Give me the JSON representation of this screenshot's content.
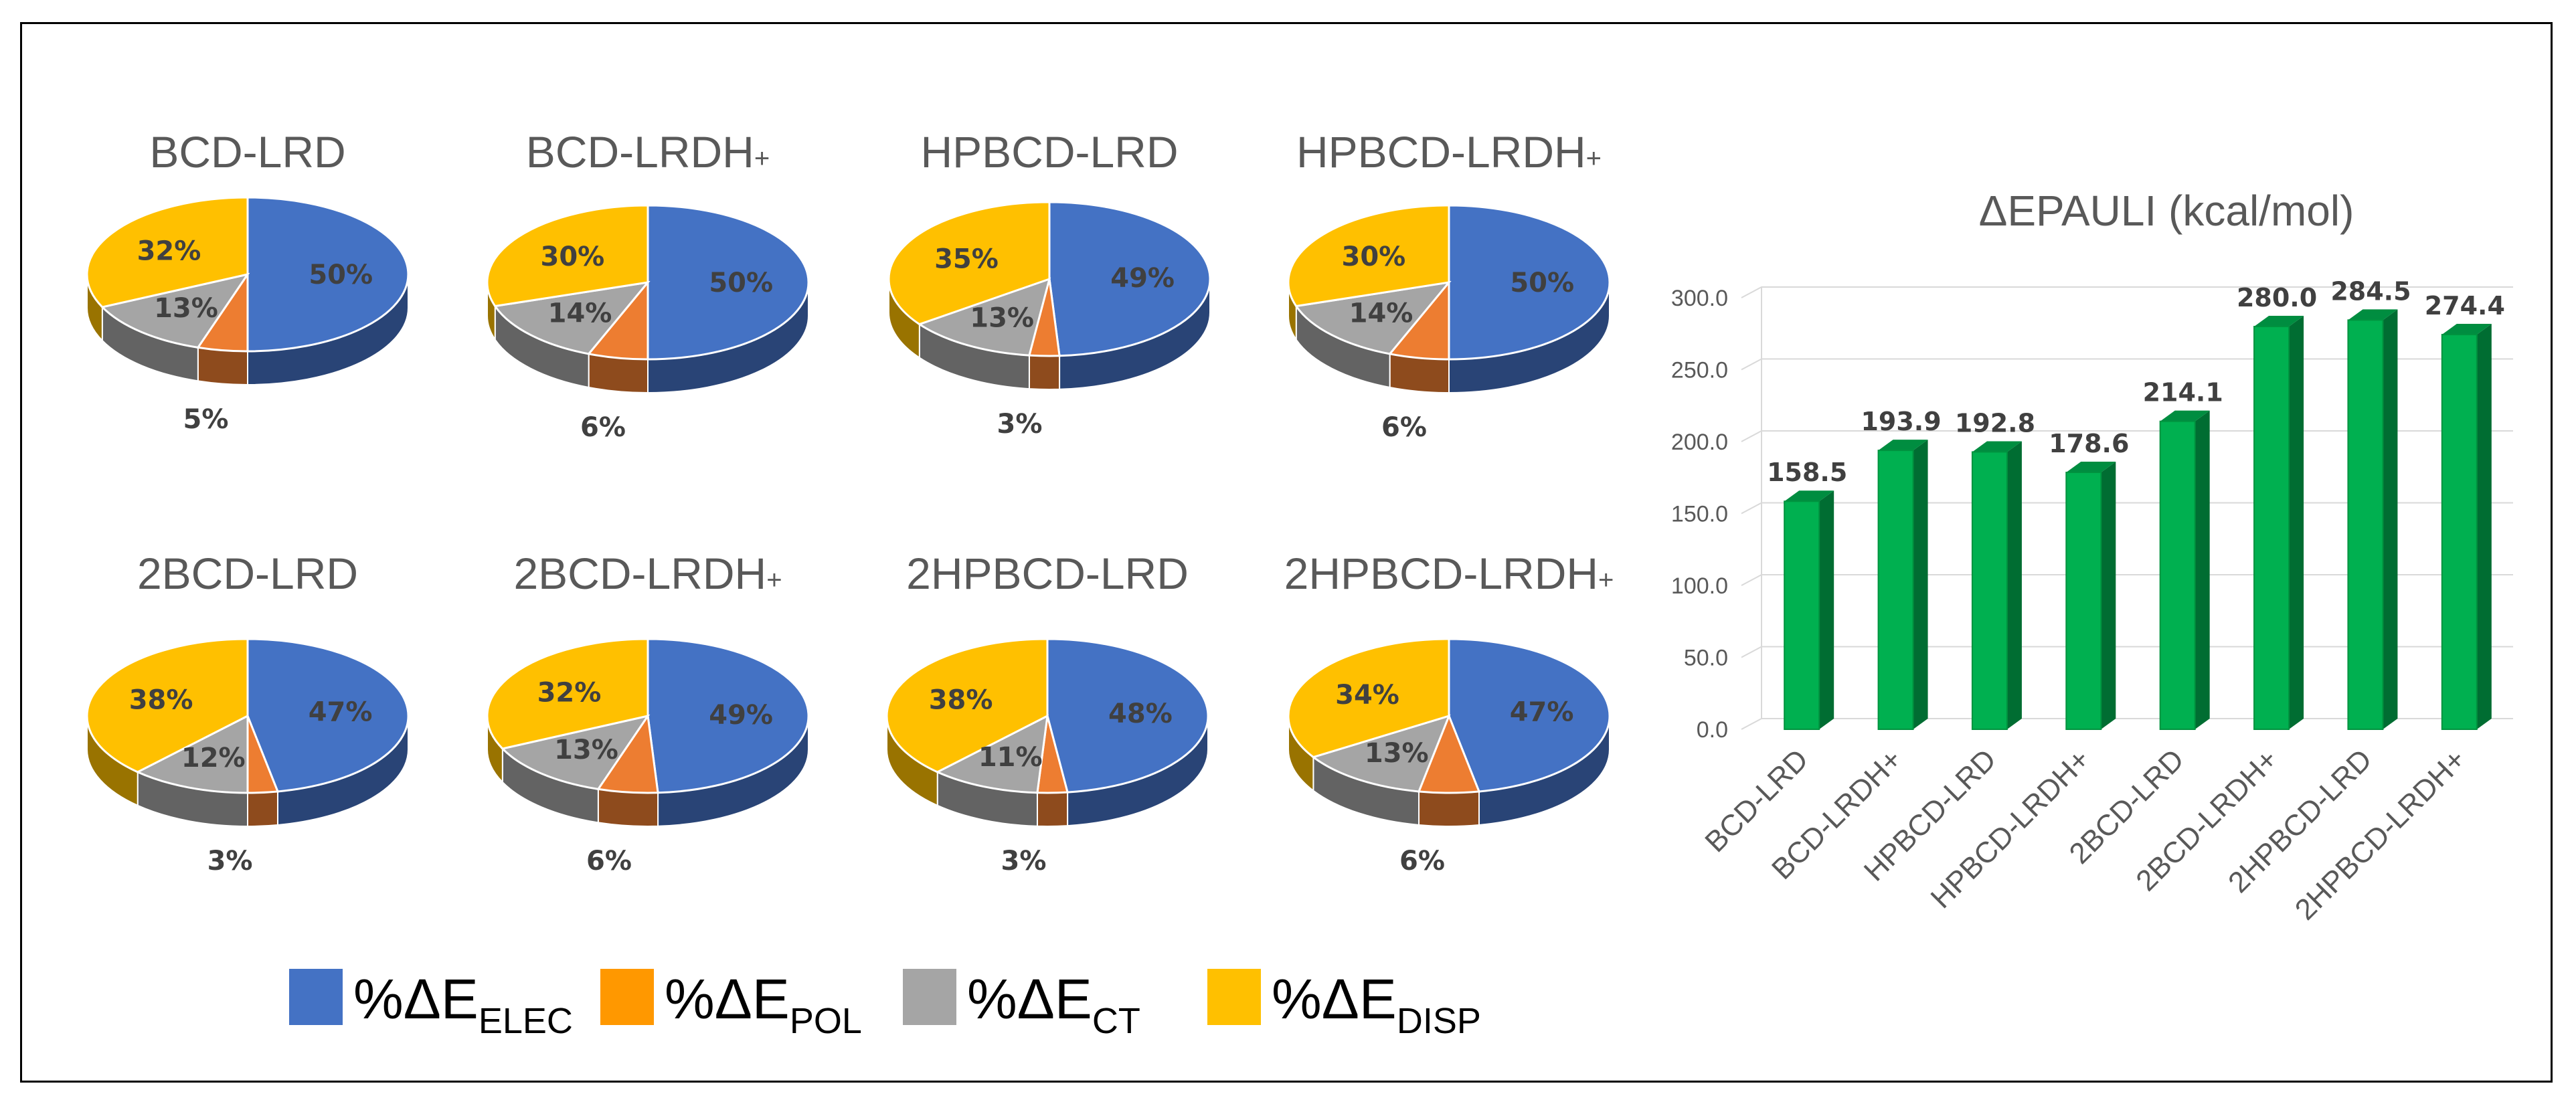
{
  "colors": {
    "elec": "#4472c4",
    "pol": "#ed7d31",
    "ct": "#a5a5a5",
    "disp": "#ffc000",
    "bar": "#00b050",
    "grid": "#d9d9d9"
  },
  "legend": [
    {
      "key": "elec",
      "prefix": "%ΔE",
      "sub": "ELEC",
      "swatch": "#4472c4"
    },
    {
      "key": "pol",
      "prefix": "%ΔE",
      "sub": "POL",
      "swatch": "#ff9800"
    },
    {
      "key": "ct",
      "prefix": "%ΔE",
      "sub": "CT",
      "swatch": "#a5a5a5"
    },
    {
      "key": "disp",
      "prefix": "%ΔE",
      "sub": "DISP",
      "swatch": "#ffc000"
    }
  ],
  "chart_data": [
    {
      "type": "pie",
      "title": "BCD-LRD",
      "title_sub": "",
      "categories": [
        "%ΔE ELEC",
        "%ΔE POL",
        "%ΔE CT",
        "%ΔE DISP"
      ],
      "values": [
        50,
        5,
        13,
        32
      ],
      "labels": [
        "50%",
        "5%",
        "13%",
        "32%"
      ]
    },
    {
      "type": "pie",
      "title": "BCD-LRDH",
      "title_sub": "+",
      "categories": [
        "%ΔE ELEC",
        "%ΔE POL",
        "%ΔE CT",
        "%ΔE DISP"
      ],
      "values": [
        50,
        6,
        14,
        30
      ],
      "labels": [
        "50%",
        "6%",
        "14%",
        "30%"
      ]
    },
    {
      "type": "pie",
      "title": "HPBCD-LRD",
      "title_sub": "",
      "categories": [
        "%ΔE ELEC",
        "%ΔE POL",
        "%ΔE CT",
        "%ΔE DISP"
      ],
      "values": [
        49,
        3,
        13,
        35
      ],
      "labels": [
        "49%",
        "3%",
        "13%",
        "35%"
      ]
    },
    {
      "type": "pie",
      "title": "HPBCD-LRDH",
      "title_sub": "+",
      "categories": [
        "%ΔE ELEC",
        "%ΔE POL",
        "%ΔE CT",
        "%ΔE DISP"
      ],
      "values": [
        50,
        6,
        14,
        30
      ],
      "labels": [
        "50%",
        "6%",
        "14%",
        "30%"
      ]
    },
    {
      "type": "pie",
      "title": "2BCD-LRD",
      "title_sub": "",
      "categories": [
        "%ΔE ELEC",
        "%ΔE POL",
        "%ΔE CT",
        "%ΔE DISP"
      ],
      "values": [
        47,
        3,
        12,
        38
      ],
      "labels": [
        "47%",
        "3%",
        "12%",
        "38%"
      ]
    },
    {
      "type": "pie",
      "title": "2BCD-LRDH",
      "title_sub": "+",
      "categories": [
        "%ΔE ELEC",
        "%ΔE POL",
        "%ΔE CT",
        "%ΔE DISP"
      ],
      "values": [
        49,
        6,
        13,
        32
      ],
      "labels": [
        "49%",
        "6%",
        "13%",
        "32%"
      ]
    },
    {
      "type": "pie",
      "title": "2HPBCD-LRD",
      "title_sub": "",
      "categories": [
        "%ΔE ELEC",
        "%ΔE POL",
        "%ΔE CT",
        "%ΔE DISP"
      ],
      "values": [
        48,
        3,
        11,
        38
      ],
      "labels": [
        "48%",
        "3%",
        "11%",
        "38%"
      ]
    },
    {
      "type": "pie",
      "title": "2HPBCD-LRDH",
      "title_sub": "+",
      "categories": [
        "%ΔE ELEC",
        "%ΔE POL",
        "%ΔE CT",
        "%ΔE DISP"
      ],
      "values": [
        47,
        6,
        13,
        34
      ],
      "labels": [
        "47%",
        "6%",
        "13%",
        "34%"
      ]
    },
    {
      "type": "bar",
      "title": "ΔEPAULI (kcal/mol)",
      "categories": [
        "BCD-LRD",
        "BCD-LRDH+",
        "HPBCD-LRD",
        "HPBCD-LRDH+",
        "2BCD-LRD",
        "2BCD-LRDH+",
        "2HPBCD-LRD",
        "2HPBCD-LRDH+"
      ],
      "values": [
        158.5,
        193.9,
        192.8,
        178.6,
        214.1,
        280.0,
        284.5,
        274.4
      ],
      "value_labels": [
        "158.5",
        "193.9",
        "192.8",
        "178.6",
        "214.1",
        "280.0",
        "284.5",
        "274.4"
      ],
      "ylim": [
        0,
        300
      ],
      "yticks": [
        "0.0",
        "50.0",
        "100.0",
        "150.0",
        "200.0",
        "250.0",
        "300.0"
      ],
      "xlabel": "",
      "ylabel": "",
      "grid": true
    }
  ]
}
